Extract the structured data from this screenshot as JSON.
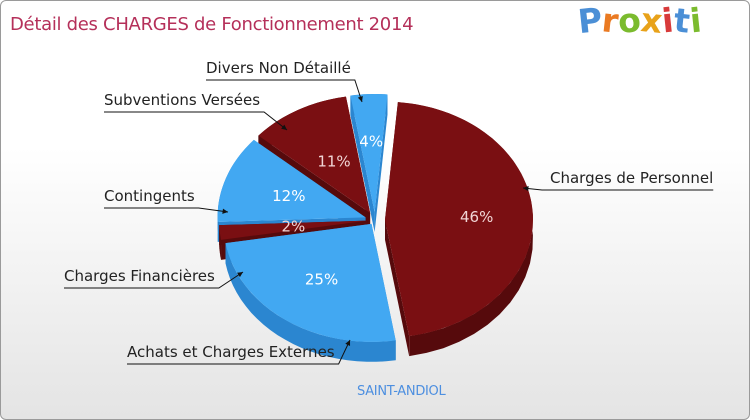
{
  "header": {
    "title": "Détail des CHARGES de Fonctionnement 2014",
    "logo_letters": [
      "P",
      "r",
      "o",
      "x",
      "i",
      "t",
      "i"
    ]
  },
  "footer": {
    "city": "SAINT-ANDIOL"
  },
  "colors": {
    "title": "#b5305a",
    "dark_red": "#7a0f12",
    "dark_red_side": "#560a0c",
    "blue": "#42a8f2",
    "blue_side": "#2b86d0",
    "logo": [
      "#4b8fd6",
      "#ea7a22",
      "#7bbb2e",
      "#e8a21a",
      "#d83a3a",
      "#4b8fd6",
      "#7bbb2e"
    ]
  },
  "chart_data": {
    "type": "pie",
    "title": "Détail des CHARGES de Fonctionnement 2014",
    "subtitle": "SAINT-ANDIOL",
    "series": [
      {
        "name": "Charges de Personnel",
        "value": 46,
        "label": "46%",
        "color": "dark_red"
      },
      {
        "name": "Achats et Charges Externes",
        "value": 25,
        "label": "25%",
        "color": "blue"
      },
      {
        "name": "Charges Financières",
        "value": 2,
        "label": "2%",
        "color": "dark_red"
      },
      {
        "name": "Contingents",
        "value": 12,
        "label": "12%",
        "color": "blue"
      },
      {
        "name": "Subventions Versées",
        "value": 11,
        "label": "11%",
        "color": "dark_red"
      },
      {
        "name": "Divers Non Détaillé",
        "value": 4,
        "label": "4%",
        "color": "blue"
      }
    ]
  }
}
